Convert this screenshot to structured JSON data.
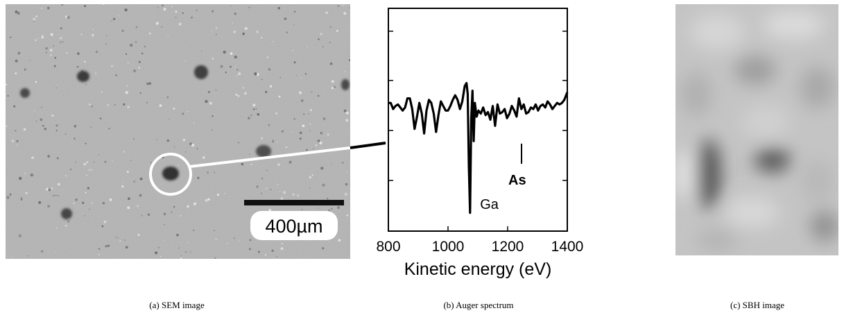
{
  "figure": {
    "panels": [
      {
        "id": "a",
        "caption": "(a) SEM image"
      },
      {
        "id": "b",
        "caption": "(b) Auger spectrum"
      },
      {
        "id": "c",
        "caption": "(c) SBH image"
      }
    ],
    "scale_bar_label": "400µm"
  },
  "colors": {
    "sem_background": "#b4b4b4",
    "sbh_background": "#c4c4c4",
    "spectrum_line": "#000000",
    "marker_circle": "#ffffff"
  },
  "chart_data": {
    "type": "line",
    "xlabel": "Kinetic energy (eV)",
    "ylabel": "",
    "xlim": [
      800,
      1400
    ],
    "xticks": [
      800,
      1000,
      1200,
      1400
    ],
    "annotations": [
      {
        "text": "Ga",
        "x": 1068
      },
      {
        "text": "As",
        "x": 1228
      }
    ],
    "series": [
      {
        "x": [
          800,
          808,
          816,
          824,
          832,
          840,
          848,
          856,
          864,
          872,
          880,
          888,
          896,
          904,
          912,
          920,
          928,
          936,
          944,
          952,
          960,
          968,
          976,
          984,
          992,
          1000,
          1008,
          1016,
          1024,
          1032,
          1040,
          1048,
          1056,
          1062,
          1066,
          1070,
          1074,
          1078,
          1082,
          1086,
          1090,
          1096,
          1102,
          1110,
          1118,
          1126,
          1134,
          1142,
          1150,
          1158,
          1166,
          1174,
          1182,
          1190,
          1198,
          1206,
          1214,
          1222,
          1230,
          1238,
          1246,
          1254,
          1262,
          1270,
          1278,
          1286,
          1294,
          1302,
          1310,
          1318,
          1326,
          1334,
          1342,
          1350,
          1358,
          1366,
          1374,
          1382,
          1390,
          1400
        ],
        "y": [
          0.3,
          0.3,
          0.1,
          0.2,
          0.25,
          0.15,
          0.05,
          0.15,
          0.45,
          0.45,
          0.1,
          -0.55,
          -0.15,
          0.3,
          -0.05,
          -0.7,
          0.05,
          0.4,
          0.3,
          -0.05,
          -0.65,
          -0.1,
          0.35,
          0.2,
          0.05,
          0.05,
          0.2,
          0.4,
          0.55,
          0.4,
          0.1,
          0.35,
          0.85,
          0.95,
          0.6,
          -1.8,
          -3.3,
          -0.2,
          0.7,
          -0.95,
          0.3,
          -0.15,
          0.05,
          -0.05,
          0.15,
          -0.1,
          0.0,
          -0.25,
          0.2,
          -0.45,
          0.25,
          -0.05,
          0.0,
          0.1,
          -0.2,
          -0.05,
          0.2,
          0.05,
          -0.15,
          0.45,
          0.1,
          0.25,
          -0.05,
          0.0,
          0.15,
          0.1,
          0.25,
          0.05,
          0.2,
          0.25,
          0.15,
          0.35,
          0.25,
          0.1,
          0.2,
          0.3,
          0.25,
          0.3,
          0.4,
          0.65
        ]
      }
    ]
  }
}
